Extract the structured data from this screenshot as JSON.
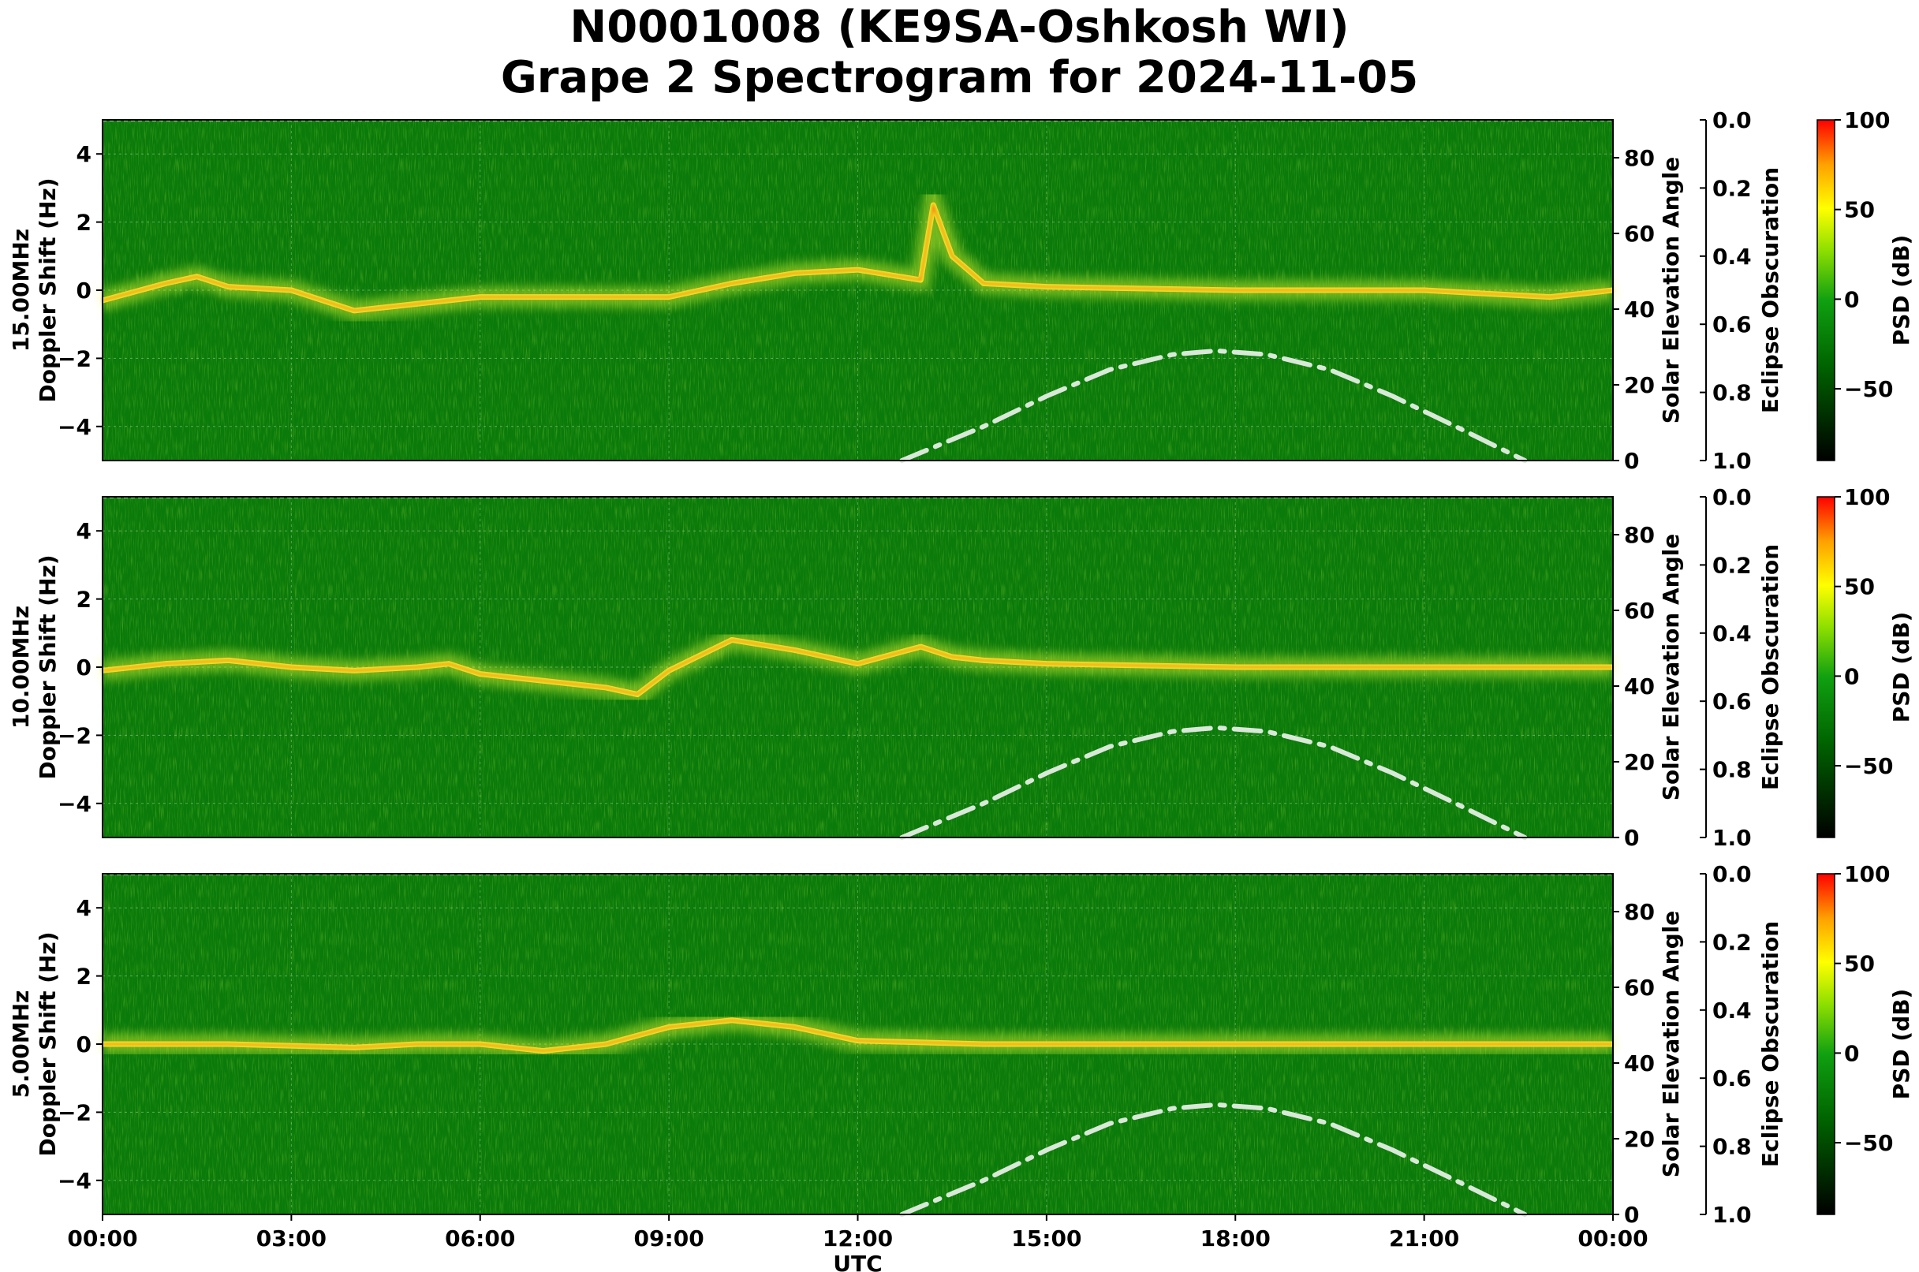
{
  "title_line1": "N0001008 (KE9SA-Oshkosh WI)",
  "title_line2": "Grape 2 Spectrogram for 2024-11-05",
  "chart_data": [
    {
      "type": "heatmap",
      "frequency": "15.00MHz",
      "ylabel": "15.00MHz\nDoppler Shift (Hz)",
      "ylabel_right": "Solar Elevation Angle",
      "ylabel_eclipse": "Eclipse Obscuration",
      "colorbar_label": "PSD (dB)",
      "ylim": [
        -5,
        5
      ],
      "yticks": [
        "4",
        "2",
        "0",
        "−2",
        "−4"
      ],
      "elev_ylim": [
        0,
        90
      ],
      "elev_ticks": [
        "0",
        "20",
        "40",
        "60",
        "80"
      ],
      "eclipse_ticks": [
        "0.0",
        "0.2",
        "0.4",
        "0.6",
        "0.8",
        "1.0"
      ],
      "colorbar_ticks": [
        "100",
        "50",
        "0",
        "−50"
      ],
      "colorbar_range": [
        -90,
        100
      ],
      "doppler_trace": [
        [
          0,
          -0.3
        ],
        [
          1,
          0.2
        ],
        [
          1.5,
          0.4
        ],
        [
          2,
          0.1
        ],
        [
          3,
          0
        ],
        [
          4,
          -0.6
        ],
        [
          5,
          -0.4
        ],
        [
          6,
          -0.2
        ],
        [
          9,
          -0.2
        ],
        [
          10,
          0.2
        ],
        [
          11,
          0.5
        ],
        [
          12,
          0.6
        ],
        [
          13,
          0.3
        ],
        [
          13.2,
          2.5
        ],
        [
          13.5,
          1
        ],
        [
          14,
          0.2
        ],
        [
          15,
          0.1
        ],
        [
          18,
          0
        ],
        [
          21,
          0
        ],
        [
          22,
          -0.1
        ],
        [
          23,
          -0.2
        ],
        [
          24,
          0
        ]
      ],
      "solar_elevation": [
        [
          12.7,
          0
        ],
        [
          14,
          9
        ],
        [
          15,
          17
        ],
        [
          16,
          24
        ],
        [
          17,
          28
        ],
        [
          17.7,
          29
        ],
        [
          18.5,
          28
        ],
        [
          19.5,
          24
        ],
        [
          20.5,
          17
        ],
        [
          21.5,
          9
        ],
        [
          22.6,
          0
        ]
      ]
    },
    {
      "type": "heatmap",
      "frequency": "10.00MHz",
      "ylabel": "10.00MHz\nDoppler Shift (Hz)",
      "ylabel_right": "Solar Elevation Angle",
      "ylabel_eclipse": "Eclipse Obscuration",
      "colorbar_label": "PSD (dB)",
      "ylim": [
        -5,
        5
      ],
      "yticks": [
        "4",
        "2",
        "0",
        "−2",
        "−4"
      ],
      "elev_ylim": [
        0,
        90
      ],
      "elev_ticks": [
        "0",
        "20",
        "40",
        "60",
        "80"
      ],
      "eclipse_ticks": [
        "0.0",
        "0.2",
        "0.4",
        "0.6",
        "0.8",
        "1.0"
      ],
      "colorbar_ticks": [
        "100",
        "50",
        "0",
        "−50"
      ],
      "colorbar_range": [
        -90,
        100
      ],
      "doppler_trace": [
        [
          0,
          -0.1
        ],
        [
          1,
          0.1
        ],
        [
          2,
          0.2
        ],
        [
          3,
          0
        ],
        [
          4,
          -0.1
        ],
        [
          5,
          0
        ],
        [
          5.5,
          0.1
        ],
        [
          6,
          -0.2
        ],
        [
          7,
          -0.4
        ],
        [
          8,
          -0.6
        ],
        [
          8.5,
          -0.8
        ],
        [
          9,
          -0.1
        ],
        [
          10,
          0.8
        ],
        [
          11,
          0.5
        ],
        [
          12,
          0.1
        ],
        [
          13,
          0.6
        ],
        [
          13.5,
          0.3
        ],
        [
          14,
          0.2
        ],
        [
          15,
          0.1
        ],
        [
          18,
          0
        ],
        [
          22,
          0
        ],
        [
          24,
          0
        ]
      ],
      "solar_elevation": [
        [
          12.7,
          0
        ],
        [
          14,
          9
        ],
        [
          15,
          17
        ],
        [
          16,
          24
        ],
        [
          17,
          28
        ],
        [
          17.7,
          29
        ],
        [
          18.5,
          28
        ],
        [
          19.5,
          24
        ],
        [
          20.5,
          17
        ],
        [
          21.5,
          9
        ],
        [
          22.6,
          0
        ]
      ]
    },
    {
      "type": "heatmap",
      "frequency": "5.00MHz",
      "ylabel": "5.00MHz\nDoppler Shift (Hz)",
      "ylabel_right": "Solar Elevation Angle",
      "ylabel_eclipse": "Eclipse Obscuration",
      "colorbar_label": "PSD (dB)",
      "ylim": [
        -5,
        5
      ],
      "yticks": [
        "4",
        "2",
        "0",
        "−2",
        "−4"
      ],
      "elev_ylim": [
        0,
        90
      ],
      "elev_ticks": [
        "0",
        "20",
        "40",
        "60",
        "80"
      ],
      "eclipse_ticks": [
        "0.0",
        "0.2",
        "0.4",
        "0.6",
        "0.8",
        "1.0"
      ],
      "colorbar_ticks": [
        "100",
        "50",
        "0",
        "−50"
      ],
      "colorbar_range": [
        -90,
        100
      ],
      "doppler_trace": [
        [
          0,
          0
        ],
        [
          2,
          0
        ],
        [
          4,
          -0.1
        ],
        [
          5,
          0
        ],
        [
          6,
          0
        ],
        [
          7,
          -0.2
        ],
        [
          8,
          0
        ],
        [
          9,
          0.5
        ],
        [
          10,
          0.7
        ],
        [
          11,
          0.5
        ],
        [
          12,
          0.1
        ],
        [
          14,
          0
        ],
        [
          18,
          0
        ],
        [
          22,
          0
        ],
        [
          24,
          0
        ]
      ],
      "solar_elevation": [
        [
          12.7,
          0
        ],
        [
          14,
          9
        ],
        [
          15,
          17
        ],
        [
          16,
          24
        ],
        [
          17,
          28
        ],
        [
          17.7,
          29
        ],
        [
          18.5,
          28
        ],
        [
          19.5,
          24
        ],
        [
          20.5,
          17
        ],
        [
          21.5,
          9
        ],
        [
          22.6,
          0
        ]
      ]
    }
  ],
  "x_axis": {
    "label": "UTC",
    "range_hours": [
      0,
      24
    ],
    "ticks": [
      "00:00",
      "03:00",
      "06:00",
      "09:00",
      "12:00",
      "15:00",
      "18:00",
      "21:00",
      "00:00"
    ]
  },
  "colors": {
    "background_green": "#0a7a0a",
    "trace": "#e8ff30",
    "trace_hot": "#ff5a00",
    "elevation_line": "#d9e8d9"
  }
}
